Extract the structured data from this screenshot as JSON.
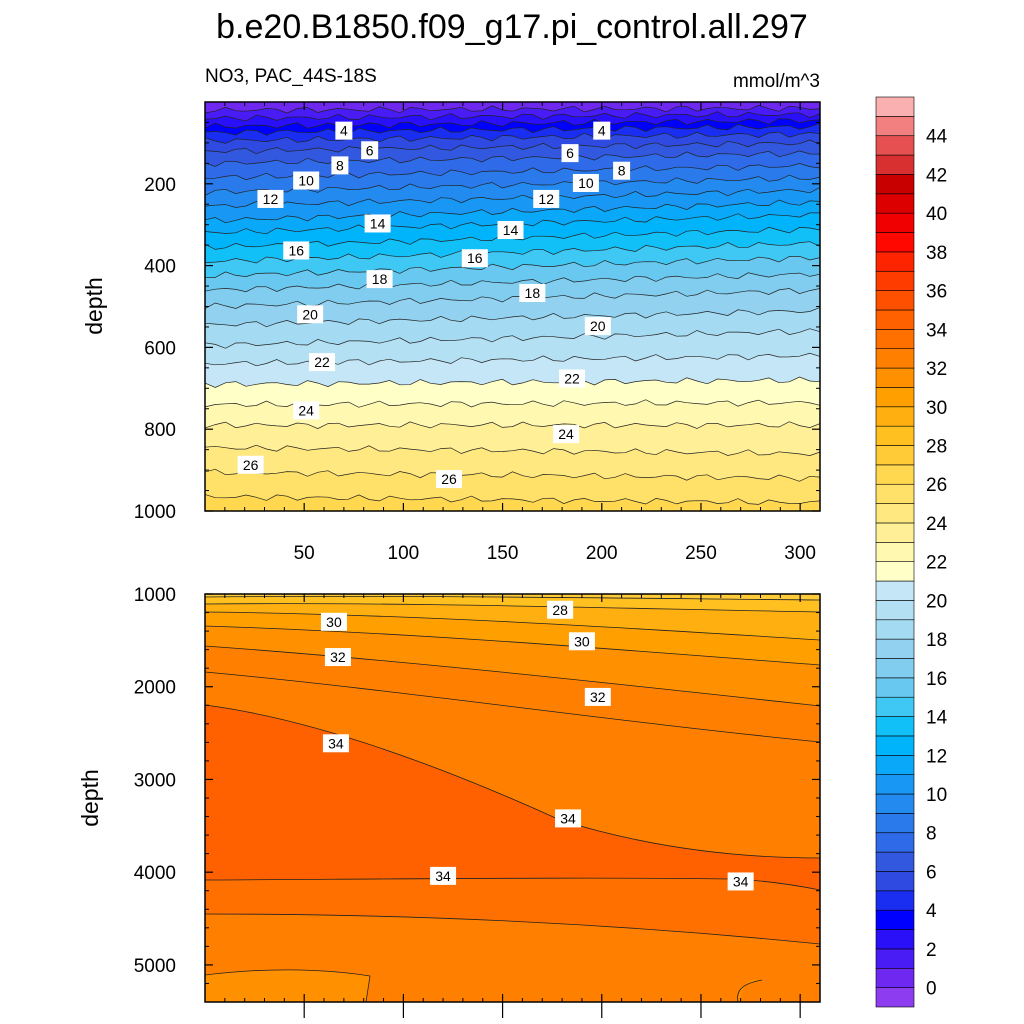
{
  "title": "b.e20.B1850.f09_g17.pi_control.all.297",
  "colorbar": {
    "levels": [
      0,
      1,
      2,
      3,
      4,
      5,
      6,
      7,
      8,
      9,
      10,
      11,
      12,
      13,
      14,
      15,
      16,
      17,
      18,
      19,
      20,
      21,
      22,
      23,
      24,
      25,
      26,
      27,
      28,
      29,
      30,
      31,
      32,
      33,
      34,
      35,
      36,
      37,
      38,
      39,
      40,
      41,
      42,
      43,
      44,
      45,
      46
    ],
    "tick_labels": [
      "0",
      "2",
      "4",
      "6",
      "8",
      "10",
      "12",
      "14",
      "16",
      "18",
      "20",
      "22",
      "24",
      "26",
      "28",
      "30",
      "32",
      "34",
      "36",
      "38",
      "40",
      "42",
      "44"
    ],
    "colors": [
      "#8e3cf0",
      "#6f28f0",
      "#4a1cf5",
      "#2a10f8",
      "#0000ff",
      "#1a2ef2",
      "#2e4ae0",
      "#3358e0",
      "#2f6ae8",
      "#2a7aec",
      "#238bf0",
      "#1898f4",
      "#0aa8f8",
      "#00b4fb",
      "#12c0f8",
      "#40c8f4",
      "#68c8f0",
      "#80cdf0",
      "#92d2f0",
      "#a4daf2",
      "#b4e0f4",
      "#c4e6f6",
      "#ffffc8",
      "#fff8b0",
      "#fff098",
      "#ffe880",
      "#ffe068",
      "#ffd850",
      "#ffcc38",
      "#ffc020",
      "#ffb010",
      "#ffa000",
      "#ff9000",
      "#ff8000",
      "#ff7000",
      "#ff6000",
      "#ff5000",
      "#ff3c00",
      "#ff2400",
      "#ff0800",
      "#f00000",
      "#dc0000",
      "#c80000",
      "#d83030",
      "#e65050",
      "#f28080",
      "#fab0b0"
    ]
  },
  "chart_data": [
    {
      "type": "contour",
      "subtitle_left": "NO3, PAC_44S-18S",
      "subtitle_right": "mmol/m^3",
      "ylabel": "depth",
      "xlabel": "",
      "xlim": [
        0,
        310
      ],
      "ylim": [
        0,
        1000
      ],
      "y_reversed": true,
      "x_ticks": [
        50,
        100,
        150,
        200,
        250,
        300
      ],
      "y_ticks": [
        200,
        400,
        600,
        800,
        1000
      ],
      "contour_levels": [
        1,
        2,
        3,
        4,
        5,
        6,
        7,
        8,
        9,
        10,
        11,
        12,
        13,
        14,
        15,
        16,
        17,
        18,
        19,
        20,
        21,
        22,
        23,
        24,
        25,
        26,
        27
      ],
      "contour_profile": {
        "left_depths": [
          0,
          20,
          40,
          60,
          75,
          95,
          120,
          150,
          185,
          220,
          255,
          290,
          320,
          355,
          390,
          425,
          460,
          500,
          545,
          595,
          640,
          690,
          740,
          790,
          845,
          905,
          965
        ],
        "right_depths": [
          0,
          15,
          30,
          45,
          60,
          78,
          100,
          125,
          155,
          185,
          215,
          245,
          275,
          310,
          345,
          380,
          420,
          460,
          510,
          560,
          620,
          680,
          735,
          790,
          860,
          920,
          980
        ]
      },
      "contour_labels": [
        {
          "text": "4",
          "x": 70,
          "y": 70
        },
        {
          "text": "4",
          "x": 200,
          "y": 70
        },
        {
          "text": "6",
          "x": 83,
          "y": 118
        },
        {
          "text": "6",
          "x": 184,
          "y": 125
        },
        {
          "text": "8",
          "x": 68,
          "y": 155
        },
        {
          "text": "8",
          "x": 210,
          "y": 168
        },
        {
          "text": "10",
          "x": 51,
          "y": 192
        },
        {
          "text": "10",
          "x": 192,
          "y": 198
        },
        {
          "text": "12",
          "x": 33,
          "y": 237
        },
        {
          "text": "12",
          "x": 172,
          "y": 237
        },
        {
          "text": "14",
          "x": 87,
          "y": 297
        },
        {
          "text": "14",
          "x": 154,
          "y": 313
        },
        {
          "text": "16",
          "x": 46,
          "y": 363
        },
        {
          "text": "16",
          "x": 136,
          "y": 382
        },
        {
          "text": "18",
          "x": 88,
          "y": 433
        },
        {
          "text": "18",
          "x": 165,
          "y": 467
        },
        {
          "text": "20",
          "x": 53,
          "y": 519
        },
        {
          "text": "20",
          "x": 198,
          "y": 548
        },
        {
          "text": "22",
          "x": 59,
          "y": 636
        },
        {
          "text": "22",
          "x": 185,
          "y": 676
        },
        {
          "text": "24",
          "x": 51,
          "y": 754
        },
        {
          "text": "24",
          "x": 182,
          "y": 812
        },
        {
          "text": "26",
          "x": 23,
          "y": 887
        },
        {
          "text": "26",
          "x": 123,
          "y": 922
        }
      ]
    },
    {
      "type": "contour",
      "ylabel": "depth",
      "xlabel": "",
      "xlim": [
        0,
        310
      ],
      "ylim": [
        1000,
        5400
      ],
      "y_reversed": true,
      "y_ticks": [
        1000,
        2000,
        3000,
        4000,
        5000
      ],
      "contour_labels": [
        {
          "text": "28",
          "x": 179,
          "y": 1170
        },
        {
          "text": "30",
          "x": 65,
          "y": 1300
        },
        {
          "text": "30",
          "x": 190,
          "y": 1510
        },
        {
          "text": "32",
          "x": 67,
          "y": 1680
        },
        {
          "text": "32",
          "x": 198,
          "y": 2110
        },
        {
          "text": "34",
          "x": 66,
          "y": 2610
        },
        {
          "text": "34",
          "x": 183,
          "y": 3420
        },
        {
          "text": "34",
          "x": 120,
          "y": 4040
        },
        {
          "text": "34",
          "x": 270,
          "y": 4100
        }
      ]
    }
  ]
}
